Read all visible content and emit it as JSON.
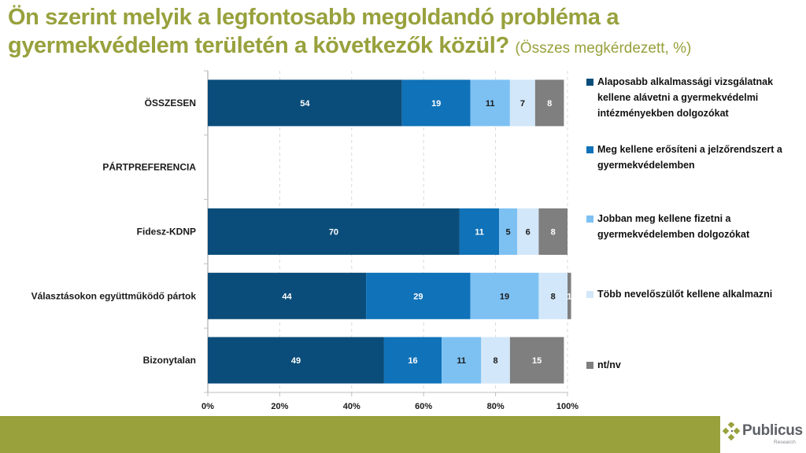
{
  "title": {
    "main": "Ön szerint melyik a legfontosabb megoldandó probléma a gyermekvédelem területén a következők közül?",
    "subtitle": "(Összes megkérdezett, %)"
  },
  "colors": {
    "accent": "#98a13c",
    "series": [
      "#0b4d7a",
      "#1072b8",
      "#7dc1f3",
      "#d2e7f9",
      "#7f7f7f"
    ],
    "label_text": [
      "#ffffff",
      "#ffffff",
      "#1a1a1a",
      "#1a1a1a",
      "#ffffff"
    ]
  },
  "chart_data": {
    "type": "bar",
    "orientation": "horizontal-stacked-100",
    "title": "Ön szerint melyik a legfontosabb megoldandó probléma a gyermekvédelem területén a következők közül? (Összes megkérdezett, %)",
    "categories": [
      "ÖSSZESEN",
      "PÁRTPREFERENCIA",
      "Fidesz-KDNP",
      "Választásokon együttműködő pártok",
      "Bizonytalan"
    ],
    "series": [
      {
        "name": "Alaposabb alkalmassági vizsgálatnak kellene alávetni a gyermekvédelmi intézményekben dolgozókat",
        "values": [
          54,
          null,
          70,
          44,
          49
        ]
      },
      {
        "name": "Meg kellene erősíteni a jelzőrendszert a gyermekvédelemben",
        "values": [
          19,
          null,
          11,
          29,
          16
        ]
      },
      {
        "name": "Jobban meg kellene fizetni a gyermekvédelemben dolgozókat",
        "values": [
          11,
          null,
          5,
          19,
          11
        ]
      },
      {
        "name": "Több nevelőszülőt kellene alkalmazni",
        "values": [
          7,
          null,
          6,
          8,
          8
        ]
      },
      {
        "name": "nt/nv",
        "values": [
          8,
          null,
          8,
          1,
          15
        ]
      }
    ],
    "xlabel": "",
    "ylabel": "",
    "xlim": [
      0,
      100
    ],
    "xticks": [
      "0%",
      "20%",
      "40%",
      "60%",
      "80%",
      "100%"
    ],
    "grid": "vertical dashed",
    "legend": "right"
  },
  "legend": [
    "Alaposabb alkalmassági vizsgálatnak kellene alávetni a gyermekvédelmi intézményekben dolgozókat",
    "Meg kellene erősíteni a jelzőrendszert a gyermekvédelemben",
    "Jobban meg kellene fizetni a gyermekvédelemben dolgozókat",
    "Több nevelőszülőt kellene alkalmazni",
    "nt/nv"
  ],
  "logo": {
    "name": "Publicus",
    "sub": "Research"
  }
}
